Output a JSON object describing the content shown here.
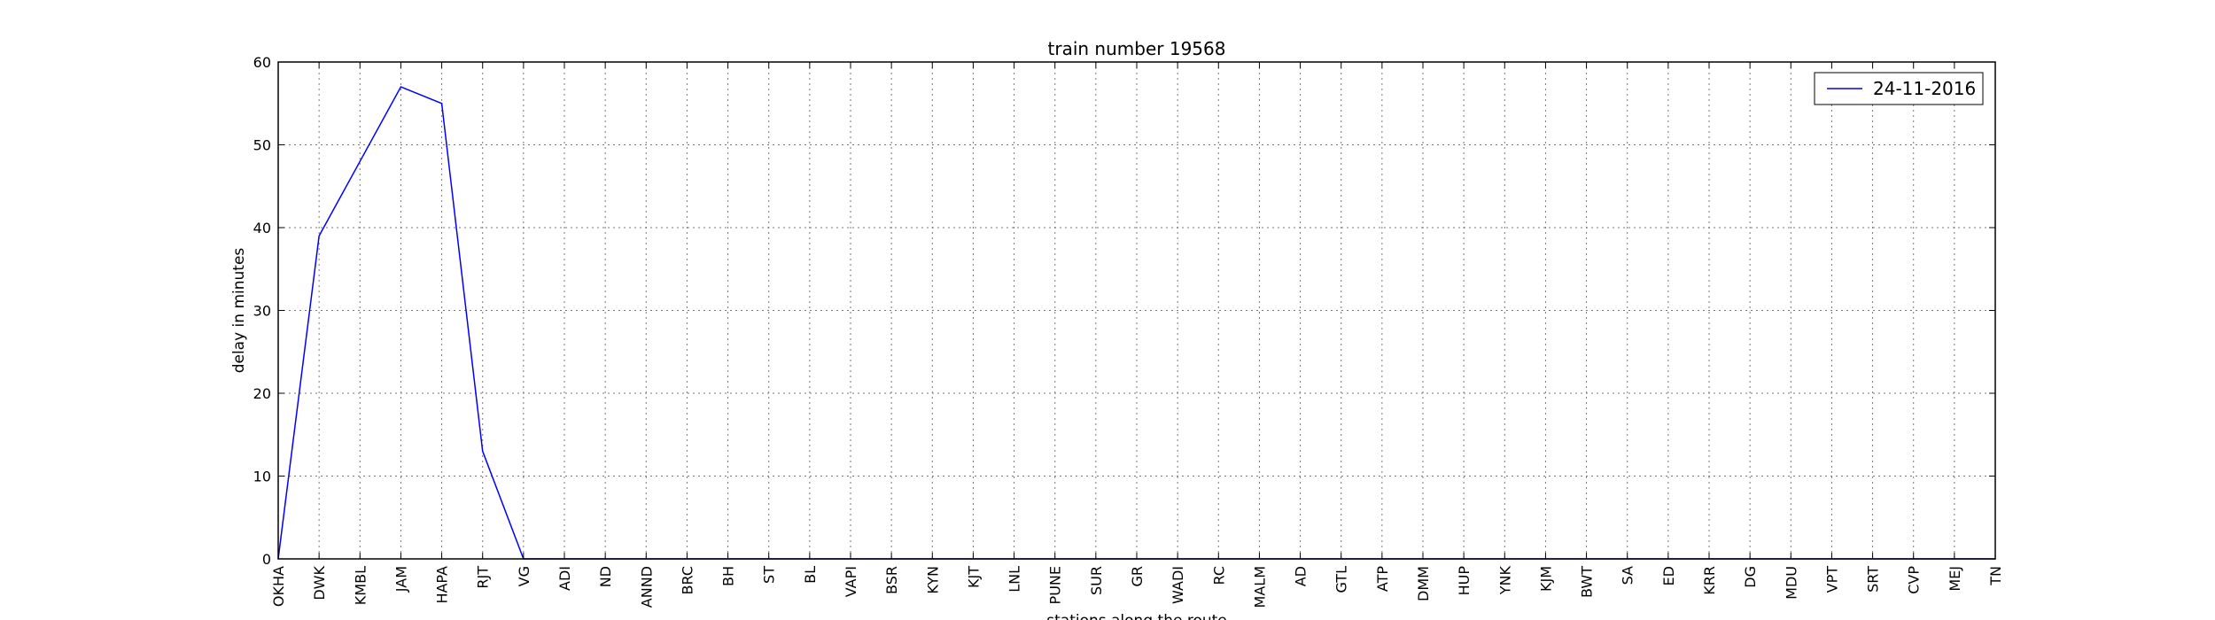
{
  "chart_data": {
    "type": "line",
    "title": "train number 19568",
    "xlabel": "stations along the route",
    "ylabel": "delay in minutes",
    "categories": [
      "OKHA",
      "DWK",
      "KMBL",
      "JAM",
      "HAPA",
      "RJT",
      "VG",
      "ADI",
      "ND",
      "ANND",
      "BRC",
      "BH",
      "ST",
      "BL",
      "VAPI",
      "BSR",
      "KYN",
      "KJT",
      "LNL",
      "PUNE",
      "SUR",
      "GR",
      "WADI",
      "RC",
      "MALM",
      "AD",
      "GTL",
      "ATP",
      "DMM",
      "HUP",
      "YNK",
      "KJM",
      "BWT",
      "SA",
      "ED",
      "KRR",
      "DG",
      "MDU",
      "VPT",
      "SRT",
      "CVP",
      "MEJ",
      "TN"
    ],
    "ylim": [
      0,
      60
    ],
    "yticks": [
      0,
      10,
      20,
      30,
      40,
      50,
      60
    ],
    "grid": true,
    "legend_position": "top-right",
    "series": [
      {
        "name": "24-11-2016",
        "color": "#0000ff",
        "values": [
          0,
          39,
          48,
          57,
          55,
          13,
          0,
          0,
          0,
          0,
          0,
          0,
          0,
          0,
          0,
          0,
          0,
          0,
          0,
          0,
          0,
          0,
          0,
          0,
          0,
          0,
          0,
          0,
          0,
          0,
          0,
          0,
          0,
          0,
          0,
          0,
          0,
          0,
          0,
          0,
          0,
          0,
          0
        ]
      }
    ]
  }
}
